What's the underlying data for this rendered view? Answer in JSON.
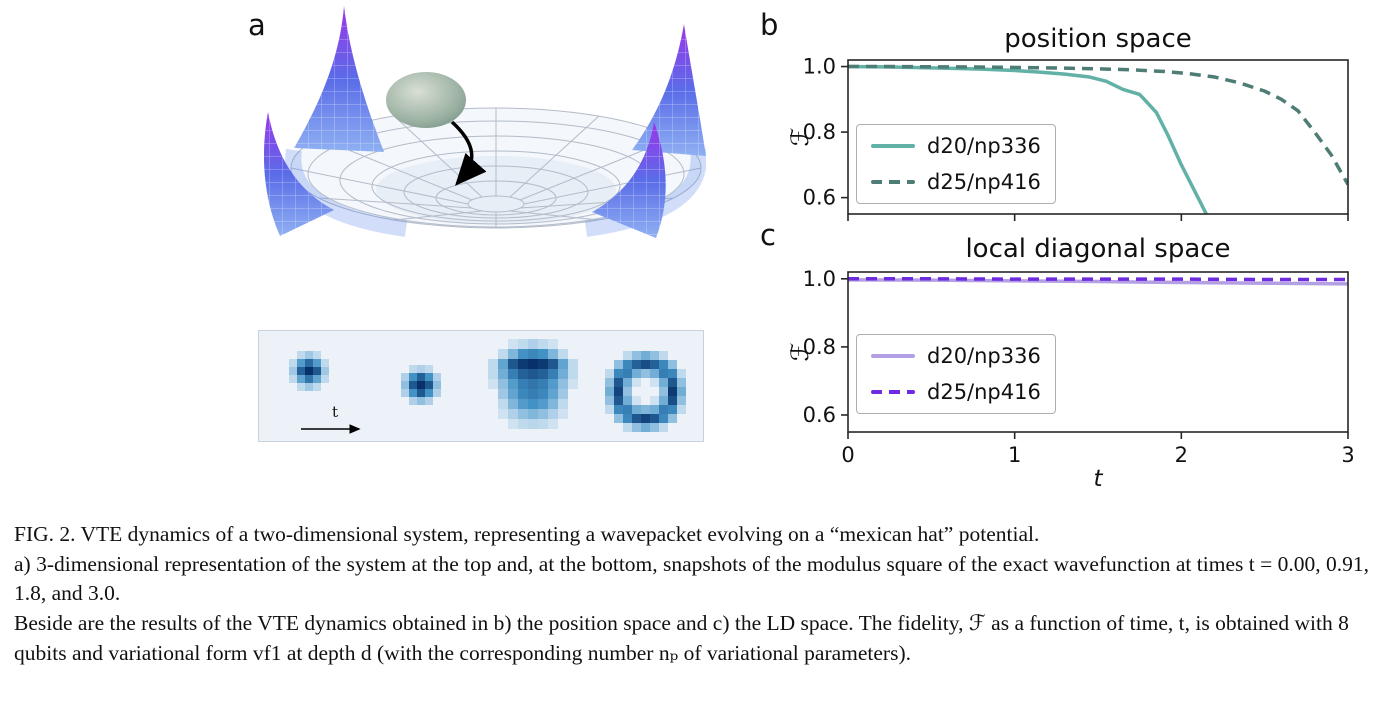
{
  "panel_labels": {
    "a": "a",
    "b": "b",
    "c": "c"
  },
  "panel_a": {
    "time_arrow_label": "t"
  },
  "chart_data": [
    {
      "id": "chart-b",
      "type": "line",
      "title": "position space",
      "ylabel": "ℱ",
      "xlabel": "",
      "xlim": [
        0,
        3
      ],
      "ylim": [
        0.55,
        1.02
      ],
      "ytick_vals": [
        1.0,
        0.8,
        0.6
      ],
      "ytick_labels": [
        "1.0",
        "0.8",
        "0.6"
      ],
      "xtick_vals": [
        0,
        1,
        2,
        3
      ],
      "xtick_labels": [
        "0",
        "1",
        "2",
        "3"
      ],
      "show_xtick_labels": false,
      "legend_position": "center-left",
      "series": [
        {
          "name": "d20/np336",
          "style": "solid",
          "color": "#62b1a7",
          "x": [
            0,
            0.2,
            0.4,
            0.6,
            0.8,
            1.0,
            1.15,
            1.3,
            1.45,
            1.55,
            1.65,
            1.75,
            1.85,
            1.92,
            2.0,
            2.08,
            2.15
          ],
          "y": [
            1.0,
            0.999,
            0.997,
            0.995,
            0.992,
            0.988,
            0.983,
            0.977,
            0.968,
            0.955,
            0.93,
            0.915,
            0.86,
            0.79,
            0.7,
            0.62,
            0.55
          ]
        },
        {
          "name": "d25/np416",
          "style": "dashed",
          "color": "#4e7d75",
          "x": [
            0,
            0.3,
            0.6,
            0.9,
            1.2,
            1.5,
            1.7,
            1.9,
            2.05,
            2.2,
            2.35,
            2.5,
            2.6,
            2.7,
            2.8,
            2.9,
            3.0
          ],
          "y": [
            1.0,
            1.0,
            0.999,
            0.998,
            0.996,
            0.993,
            0.99,
            0.985,
            0.978,
            0.968,
            0.95,
            0.925,
            0.9,
            0.865,
            0.8,
            0.73,
            0.64
          ]
        }
      ]
    },
    {
      "id": "chart-c",
      "type": "line",
      "title": "local diagonal space",
      "ylabel": "ℱ",
      "xlabel": "t",
      "xlim": [
        0,
        3
      ],
      "ylim": [
        0.55,
        1.02
      ],
      "ytick_vals": [
        1.0,
        0.8,
        0.6
      ],
      "ytick_labels": [
        "1.0",
        "0.8",
        "0.6"
      ],
      "xtick_vals": [
        0,
        1,
        2,
        3
      ],
      "xtick_labels": [
        "0",
        "1",
        "2",
        "3"
      ],
      "show_xtick_labels": true,
      "legend_position": "center-left",
      "series": [
        {
          "name": "d20/np336",
          "style": "solid",
          "color": "#b3a0e4",
          "x": [
            0,
            0.5,
            1.0,
            1.5,
            2.0,
            2.5,
            3.0
          ],
          "y": [
            0.997,
            0.996,
            0.994,
            0.992,
            0.989,
            0.987,
            0.985
          ]
        },
        {
          "name": "d25/np416",
          "style": "dashed",
          "color": "#6f2cdf",
          "x": [
            0,
            0.5,
            1.0,
            1.5,
            2.0,
            2.5,
            3.0
          ],
          "y": [
            1.0,
            1.0,
            0.999,
            0.999,
            0.999,
            0.998,
            0.998
          ]
        }
      ]
    },
    {
      "id": "snapshots",
      "type": "heatmap",
      "colormap": "Blues",
      "times": [
        0.0,
        0.91,
        1.8,
        3.0
      ],
      "grids": [
        [
          [
            0,
            0,
            0,
            0,
            0,
            0,
            0
          ],
          [
            0,
            0,
            0.1,
            0.2,
            0.1,
            0,
            0
          ],
          [
            0,
            0.1,
            0.45,
            0.7,
            0.45,
            0.1,
            0
          ],
          [
            0,
            0.2,
            0.75,
            1,
            0.8,
            0.2,
            0
          ],
          [
            0,
            0.1,
            0.4,
            0.65,
            0.4,
            0.1,
            0
          ],
          [
            0,
            0,
            0.1,
            0.2,
            0.1,
            0,
            0
          ],
          [
            0,
            0,
            0,
            0,
            0,
            0,
            0
          ]
        ],
        [
          [
            0,
            0,
            0,
            0,
            0,
            0,
            0
          ],
          [
            0,
            0,
            0.1,
            0.15,
            0.1,
            0,
            0
          ],
          [
            0,
            0.15,
            0.5,
            0.75,
            0.5,
            0.15,
            0
          ],
          [
            0,
            0.25,
            0.8,
            1,
            0.8,
            0.25,
            0
          ],
          [
            0,
            0.15,
            0.5,
            0.8,
            0.5,
            0.15,
            0
          ],
          [
            0,
            0,
            0.15,
            0.25,
            0.15,
            0,
            0
          ],
          [
            0,
            0,
            0,
            0,
            0,
            0,
            0
          ]
        ],
        [
          [
            0,
            0,
            0.05,
            0.1,
            0.15,
            0.1,
            0.05,
            0,
            0
          ],
          [
            0,
            0.1,
            0.3,
            0.5,
            0.55,
            0.5,
            0.3,
            0.1,
            0
          ],
          [
            0.1,
            0.4,
            0.8,
            0.95,
            1,
            0.95,
            0.8,
            0.4,
            0.1
          ],
          [
            0.1,
            0.35,
            0.6,
            0.75,
            0.8,
            0.75,
            0.6,
            0.35,
            0.1
          ],
          [
            0.05,
            0.25,
            0.45,
            0.6,
            0.65,
            0.6,
            0.45,
            0.25,
            0.05
          ],
          [
            0,
            0.2,
            0.4,
            0.55,
            0.6,
            0.55,
            0.4,
            0.2,
            0
          ],
          [
            0,
            0.1,
            0.3,
            0.45,
            0.5,
            0.45,
            0.3,
            0.1,
            0
          ],
          [
            0,
            0.05,
            0.15,
            0.25,
            0.3,
            0.25,
            0.15,
            0.05,
            0
          ],
          [
            0,
            0,
            0.05,
            0.1,
            0.12,
            0.1,
            0.05,
            0,
            0
          ]
        ],
        [
          [
            0,
            0,
            0.1,
            0.25,
            0.35,
            0.25,
            0.1,
            0,
            0
          ],
          [
            0,
            0.25,
            0.55,
            0.75,
            0.85,
            0.75,
            0.55,
            0.25,
            0
          ],
          [
            0.1,
            0.55,
            0.6,
            0.35,
            0.25,
            0.35,
            0.6,
            0.55,
            0.1
          ],
          [
            0.25,
            0.8,
            0.35,
            0.05,
            0,
            0.05,
            0.35,
            0.8,
            0.25
          ],
          [
            0.35,
            0.9,
            0.25,
            0,
            0,
            0,
            0.25,
            0.95,
            0.35
          ],
          [
            0.25,
            0.8,
            0.35,
            0.05,
            0,
            0.05,
            0.35,
            0.85,
            0.25
          ],
          [
            0.1,
            0.55,
            0.6,
            0.35,
            0.3,
            0.35,
            0.6,
            0.55,
            0.1
          ],
          [
            0,
            0.25,
            0.55,
            0.8,
            0.9,
            0.8,
            0.55,
            0.25,
            0
          ],
          [
            0,
            0,
            0.1,
            0.25,
            0.35,
            0.25,
            0.1,
            0,
            0
          ]
        ]
      ]
    }
  ],
  "caption": {
    "p1": "FIG. 2. VTE dynamics of a two-dimensional system, representing a wavepacket evolving on a “mexican hat” potential.",
    "p2": "a) 3-dimensional representation of the system at the top and, at the bottom, snapshots of the modulus square of the exact wavefunction at times t = 0.00, 0.91, 1.8, and 3.0.",
    "p3": "Beside are the results of the VTE dynamics obtained in b) the position space and c) the LD space. The fidelity, ℱ as a function of time, t, is obtained with 8 qubits and variational form vf1 at depth d (with the corresponding number nₚ of variational parameters)."
  }
}
